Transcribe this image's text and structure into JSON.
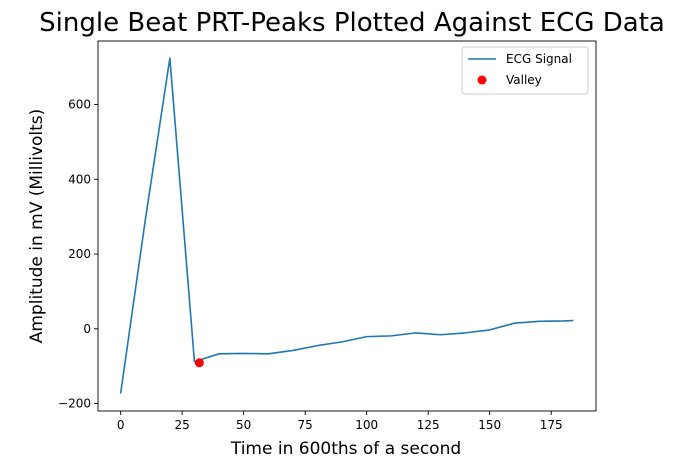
{
  "chart_data": {
    "type": "line",
    "title": "Single Beat PRT-Peaks Plotted Against ECG Data",
    "xlabel": "Time in 600ths of a second",
    "ylabel": "Amplitude in mV (Millivolts)",
    "xlim": [
      -9.2,
      193.2
    ],
    "ylim": [
      -220,
      770
    ],
    "xticks": [
      0,
      25,
      50,
      75,
      100,
      125,
      150,
      175
    ],
    "yticks": [
      -200,
      0,
      200,
      400,
      600
    ],
    "grid": false,
    "legend_position": "upper right",
    "series": [
      {
        "name": "ECG Signal",
        "kind": "line",
        "color": "#1f77b4",
        "x": [
          0,
          10,
          20,
          30,
          40,
          50,
          60,
          70,
          80,
          90,
          100,
          110,
          120,
          130,
          140,
          150,
          160,
          170,
          180,
          184
        ],
        "y": [
          -173,
          290,
          724,
          -88,
          -67,
          -66,
          -67,
          -58,
          -45,
          -35,
          -21,
          -19,
          -11,
          -16,
          -11,
          -3,
          15,
          20,
          21,
          22
        ]
      },
      {
        "name": "Valley",
        "kind": "marker",
        "color": "#ff0000",
        "x": [
          32
        ],
        "y": [
          -91
        ]
      }
    ]
  }
}
